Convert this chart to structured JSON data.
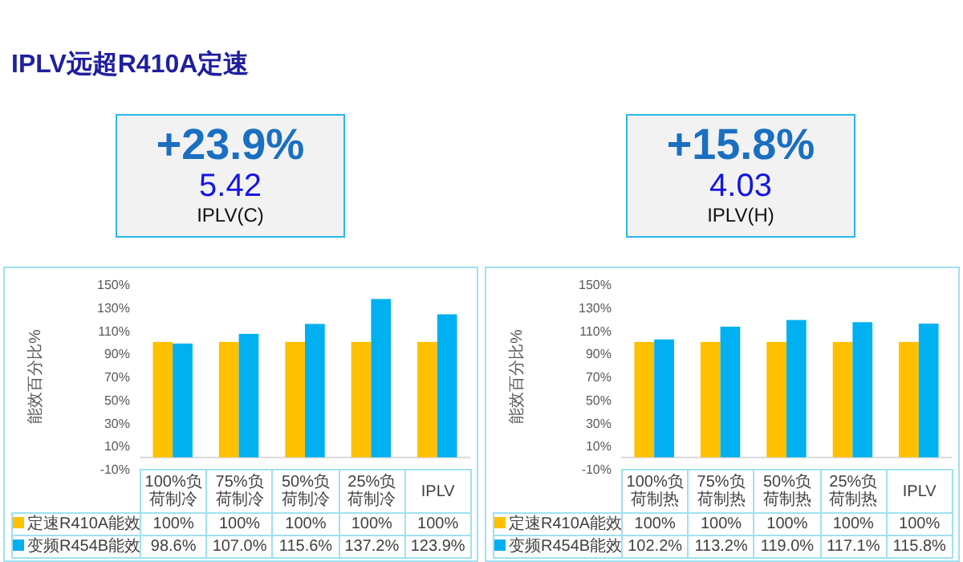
{
  "chart_data": [
    {
      "type": "other",
      "title": "IPLV远超R410A定速"
    },
    {
      "type": "other",
      "annotations": [
        "+23.9%",
        "5.42",
        "IPLV(C)"
      ]
    },
    {
      "type": "other",
      "annotations": [
        "+15.8%",
        "4.03",
        "IPLV(H)"
      ]
    },
    {
      "type": "bar",
      "ylabel": "能效百分比%",
      "categories": [
        "100%负荷制冷",
        "75%负荷制冷",
        "50%负荷制冷",
        "25%负荷制冷",
        "IPLV"
      ],
      "series": [
        {
          "name": "定速R410A能效",
          "color": "#ffc000",
          "values": [
            100,
            100,
            100,
            100,
            100
          ],
          "value_labels": [
            "100%",
            "100%",
            "100%",
            "100%",
            "100%"
          ]
        },
        {
          "name": "变频R454B能效",
          "color": "#00b0f0",
          "values": [
            98.6,
            107.0,
            115.6,
            137.2,
            123.9
          ],
          "value_labels": [
            "98.6%",
            "107.0%",
            "115.6%",
            "137.2%",
            "123.9%"
          ]
        }
      ],
      "ylim": [
        -10,
        150
      ],
      "yticks": [
        {
          "value": -10,
          "label": "-10%"
        },
        {
          "value": 10,
          "label": "10%"
        },
        {
          "value": 30,
          "label": "30%"
        },
        {
          "value": 50,
          "label": "50%"
        },
        {
          "value": 70,
          "label": "70%"
        },
        {
          "value": 90,
          "label": "90%"
        },
        {
          "value": 110,
          "label": "110%"
        },
        {
          "value": 130,
          "label": "130%"
        },
        {
          "value": 150,
          "label": "150%"
        }
      ],
      "legend": "bottom"
    },
    {
      "type": "bar",
      "ylabel": "能效百分比%",
      "categories": [
        "100%负荷制热",
        "75%负荷制热",
        "50%负荷制热",
        "25%负荷制热",
        "IPLV"
      ],
      "series": [
        {
          "name": "定速R410A能效",
          "color": "#ffc000",
          "values": [
            100,
            100,
            100,
            100,
            100
          ],
          "value_labels": [
            "100%",
            "100%",
            "100%",
            "100%",
            "100%"
          ]
        },
        {
          "name": "变频R454B能效",
          "color": "#00b0f0",
          "values": [
            102.2,
            113.2,
            119.0,
            117.1,
            115.8
          ],
          "value_labels": [
            "102.2%",
            "113.2%",
            "119.0%",
            "117.1%",
            "115.8%"
          ]
        }
      ],
      "ylim": [
        -10,
        150
      ],
      "yticks": [
        {
          "value": -10,
          "label": "-10%"
        },
        {
          "value": 10,
          "label": "10%"
        },
        {
          "value": 30,
          "label": "30%"
        },
        {
          "value": 50,
          "label": "50%"
        },
        {
          "value": 70,
          "label": "70%"
        },
        {
          "value": 90,
          "label": "90%"
        },
        {
          "value": 110,
          "label": "110%"
        },
        {
          "value": 130,
          "label": "130%"
        },
        {
          "value": 150,
          "label": "150%"
        }
      ],
      "legend": "bottom"
    }
  ]
}
